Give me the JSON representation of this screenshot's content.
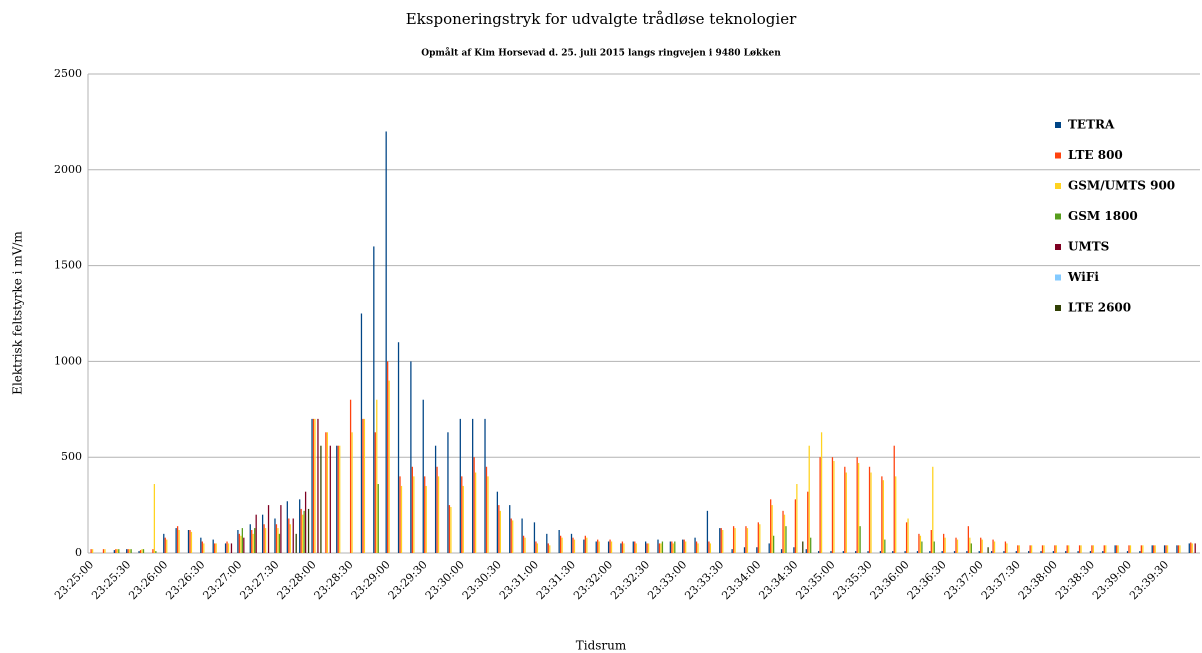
{
  "chart_data": {
    "type": "bar",
    "title": "Eksponeringstryk for udvalgte trådløse teknologier",
    "subtitle": "Opmålt af Kim Horsevad d. 25. juli 2015 langs ringvejen i 9480 Løkken",
    "x_label": "Tidsrum",
    "y_label": "Elektrisk feltstyrke i mV/m",
    "categories": [
      "23:25:00",
      null,
      null,
      "23:25:30",
      null,
      null,
      "23:26:00",
      null,
      null,
      "23:26:30",
      null,
      null,
      "23:27:00",
      null,
      null,
      "23:27:30",
      null,
      null,
      "23:28:00",
      null,
      null,
      "23:28:30",
      null,
      null,
      "23:29:00",
      null,
      null,
      "23:29:30",
      null,
      null,
      "23:30:00",
      null,
      null,
      "23:30:30",
      null,
      null,
      "23:31:00",
      null,
      null,
      "23:31:30",
      null,
      null,
      "23:32:00",
      null,
      null,
      "23:32:30",
      null,
      null,
      "23:33:00",
      null,
      null,
      "23:33:30",
      null,
      null,
      "23:34:00",
      null,
      null,
      "23:34:30",
      null,
      null,
      "23:35:00",
      null,
      null,
      "23:35:30",
      null,
      null,
      "23:36:00",
      null,
      null,
      "23:36:30",
      null,
      null,
      "23:37:00",
      null,
      null,
      "23:37:30",
      null,
      null,
      "23:38:00",
      null,
      null,
      "23:38:30",
      null,
      null,
      "23:39:00",
      null,
      null,
      "23:39:30",
      null,
      null
    ],
    "series": [
      {
        "name": "TETRA",
        "color": "#004586",
        "values": [
          0,
          0,
          15,
          20,
          10,
          0,
          100,
          130,
          120,
          80,
          70,
          50,
          120,
          150,
          200,
          180,
          270,
          280,
          700,
          0,
          560,
          0,
          1250,
          1600,
          2200,
          1100,
          1000,
          800,
          560,
          630,
          700,
          700,
          700,
          320,
          250,
          180,
          160,
          100,
          120,
          100,
          70,
          60,
          60,
          50,
          60,
          60,
          70,
          60,
          70,
          80,
          220,
          130,
          20,
          30,
          30,
          50,
          20,
          30,
          20,
          10,
          10,
          10,
          10,
          10,
          10,
          10,
          10,
          10,
          10,
          10,
          10,
          10,
          10,
          10,
          10,
          10,
          10,
          10,
          10,
          10,
          10,
          10,
          10,
          40,
          10,
          10,
          40,
          40,
          40,
          50
        ]
      },
      {
        "name": "LTE 800",
        "color": "#ff420e",
        "values": [
          20,
          20,
          20,
          20,
          15,
          20,
          80,
          140,
          120,
          60,
          50,
          60,
          100,
          120,
          150,
          150,
          180,
          230,
          700,
          630,
          560,
          800,
          700,
          630,
          1000,
          400,
          450,
          400,
          450,
          250,
          400,
          500,
          450,
          250,
          180,
          90,
          60,
          50,
          90,
          80,
          90,
          70,
          70,
          60,
          60,
          50,
          50,
          60,
          70,
          60,
          60,
          130,
          140,
          140,
          160,
          280,
          220,
          280,
          320,
          500,
          500,
          450,
          500,
          450,
          400,
          560,
          160,
          100,
          120,
          100,
          80,
          140,
          80,
          70,
          60,
          40,
          40,
          40,
          40,
          40,
          40,
          40,
          40,
          40,
          40,
          40,
          40,
          40,
          40,
          55
        ]
      },
      {
        "name": "GSM/UMTS 900",
        "color": "#ffd320",
        "values": [
          20,
          20,
          20,
          20,
          20,
          360,
          70,
          120,
          110,
          50,
          50,
          50,
          90,
          100,
          130,
          130,
          150,
          200,
          700,
          630,
          560,
          630,
          700,
          800,
          900,
          350,
          400,
          350,
          400,
          240,
          350,
          420,
          400,
          220,
          170,
          80,
          50,
          40,
          80,
          70,
          80,
          60,
          60,
          50,
          50,
          50,
          50,
          50,
          60,
          50,
          50,
          120,
          130,
          130,
          150,
          250,
          200,
          360,
          560,
          630,
          480,
          420,
          470,
          420,
          380,
          400,
          180,
          90,
          450,
          80,
          70,
          80,
          70,
          60,
          50,
          40,
          40,
          40,
          40,
          40,
          40,
          40,
          40,
          40,
          40,
          40,
          40,
          40,
          40,
          50
        ]
      },
      {
        "name": "GSM 1800",
        "color": "#579d1c",
        "values": [
          0,
          0,
          20,
          20,
          20,
          10,
          0,
          0,
          0,
          0,
          0,
          0,
          130,
          130,
          0,
          100,
          0,
          220,
          0,
          0,
          0,
          0,
          0,
          360,
          0,
          0,
          0,
          0,
          0,
          0,
          0,
          0,
          0,
          0,
          0,
          0,
          0,
          0,
          0,
          0,
          0,
          0,
          0,
          0,
          0,
          0,
          60,
          60,
          0,
          0,
          0,
          0,
          0,
          0,
          0,
          90,
          140,
          0,
          80,
          0,
          0,
          0,
          140,
          0,
          70,
          0,
          0,
          60,
          60,
          0,
          0,
          50,
          0,
          0,
          0,
          0,
          0,
          0,
          0,
          0,
          0,
          0,
          0,
          0,
          0,
          0,
          0,
          0,
          0,
          0
        ]
      },
      {
        "name": "UMTS",
        "color": "#7e0021",
        "values": [
          0,
          0,
          0,
          0,
          0,
          0,
          0,
          0,
          0,
          0,
          0,
          50,
          80,
          200,
          250,
          250,
          180,
          320,
          700,
          560,
          0,
          0,
          0,
          0,
          0,
          0,
          0,
          0,
          0,
          0,
          0,
          0,
          0,
          0,
          0,
          0,
          0,
          0,
          0,
          0,
          0,
          0,
          0,
          0,
          0,
          0,
          0,
          0,
          0,
          0,
          0,
          0,
          0,
          0,
          0,
          0,
          0,
          0,
          0,
          0,
          0,
          0,
          0,
          0,
          0,
          0,
          0,
          0,
          0,
          0,
          0,
          0,
          0,
          0,
          0,
          0,
          0,
          0,
          0,
          0,
          0,
          0,
          0,
          0,
          0,
          0,
          0,
          0,
          0,
          50
        ]
      },
      {
        "name": "WiFi",
        "color": "#83caff",
        "values": [
          0,
          0,
          0,
          0,
          0,
          0,
          0,
          0,
          0,
          0,
          0,
          0,
          0,
          0,
          0,
          0,
          0,
          0,
          0,
          0,
          0,
          0,
          0,
          0,
          0,
          0,
          0,
          0,
          0,
          0,
          0,
          0,
          0,
          0,
          0,
          0,
          0,
          0,
          0,
          0,
          0,
          0,
          0,
          0,
          0,
          0,
          0,
          0,
          0,
          0,
          0,
          0,
          0,
          0,
          0,
          0,
          0,
          0,
          0,
          0,
          0,
          0,
          0,
          0,
          0,
          0,
          0,
          0,
          0,
          0,
          0,
          0,
          0,
          0,
          0,
          0,
          0,
          0,
          0,
          0,
          0,
          0,
          0,
          0,
          0,
          0,
          0,
          0,
          0,
          0
        ]
      },
      {
        "name": "LTE 2600",
        "color": "#314004",
        "values": [
          0,
          0,
          0,
          0,
          0,
          0,
          0,
          0,
          0,
          0,
          0,
          0,
          0,
          0,
          0,
          0,
          100,
          230,
          560,
          0,
          0,
          0,
          0,
          0,
          0,
          0,
          0,
          0,
          0,
          0,
          0,
          0,
          0,
          0,
          0,
          0,
          0,
          0,
          0,
          0,
          0,
          0,
          0,
          0,
          0,
          0,
          0,
          0,
          0,
          0,
          0,
          0,
          0,
          0,
          0,
          0,
          0,
          60,
          0,
          0,
          0,
          0,
          0,
          0,
          0,
          0,
          0,
          0,
          0,
          0,
          0,
          0,
          30,
          0,
          0,
          0,
          0,
          0,
          0,
          0,
          0,
          0,
          0,
          0,
          0,
          0,
          0,
          0,
          0,
          0
        ]
      }
    ],
    "ylim": [
      0,
      2500
    ],
    "yticks": [
      0,
      500,
      1000,
      1500,
      2000,
      2500
    ],
    "grid": true,
    "legend": "right"
  }
}
